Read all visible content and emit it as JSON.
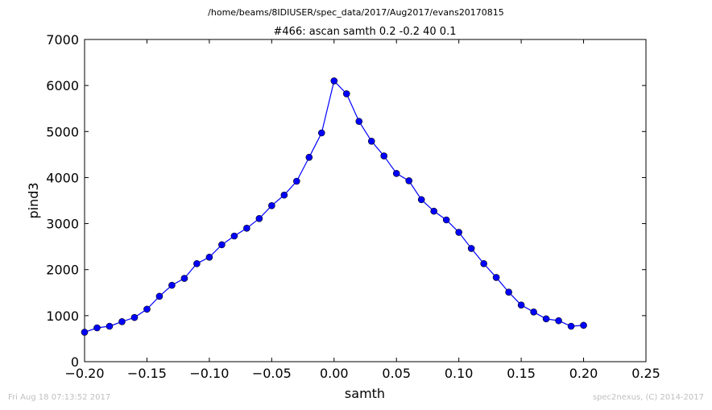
{
  "header": {
    "file_path": "/home/beams/8IDIUSER/spec_data/2017/Aug2017/evans20170815"
  },
  "footer": {
    "timestamp": "Fri Aug 18 07:13:52 2017",
    "credit": "spec2nexus, (C) 2014-2017"
  },
  "chart_data": {
    "type": "line",
    "title": "#466: ascan  samth 0.2 -0.2  40 0.1",
    "xlabel": "samth",
    "ylabel": "pind3",
    "xlim": [
      -0.2,
      0.25
    ],
    "ylim": [
      0,
      7000
    ],
    "xticks": [
      -0.2,
      -0.15,
      -0.1,
      -0.05,
      0.0,
      0.05,
      0.1,
      0.15,
      0.2,
      0.25
    ],
    "xtick_labels": [
      "−0.20",
      "−0.15",
      "−0.10",
      "−0.05",
      "0.00",
      "0.05",
      "0.10",
      "0.15",
      "0.20",
      "0.25"
    ],
    "yticks": [
      0,
      1000,
      2000,
      3000,
      4000,
      5000,
      6000,
      7000
    ],
    "ytick_labels": [
      "0",
      "1000",
      "2000",
      "3000",
      "4000",
      "5000",
      "6000",
      "7000"
    ],
    "grid": false,
    "marker": "circle",
    "color": "#0000ff",
    "x": [
      -0.2,
      -0.19,
      -0.18,
      -0.17,
      -0.16,
      -0.15,
      -0.14,
      -0.13,
      -0.12,
      -0.11,
      -0.1,
      -0.09,
      -0.08,
      -0.07,
      -0.06,
      -0.05,
      -0.04,
      -0.03,
      -0.02,
      -0.01,
      0.0,
      0.01,
      0.02,
      0.03,
      0.04,
      0.05,
      0.06,
      0.07,
      0.08,
      0.09,
      0.1,
      0.11,
      0.12,
      0.13,
      0.14,
      0.15,
      0.16,
      0.17,
      0.18,
      0.19,
      0.2
    ],
    "y": [
      640,
      735,
      770,
      870,
      960,
      1140,
      1420,
      1660,
      1810,
      2130,
      2270,
      2540,
      2730,
      2900,
      3110,
      3390,
      3620,
      3920,
      4440,
      4970,
      6100,
      5820,
      5220,
      4790,
      4470,
      4090,
      3930,
      3520,
      3270,
      3080,
      2810,
      2460,
      2130,
      1830,
      1510,
      1230,
      1080,
      930,
      890,
      770,
      790
    ]
  }
}
